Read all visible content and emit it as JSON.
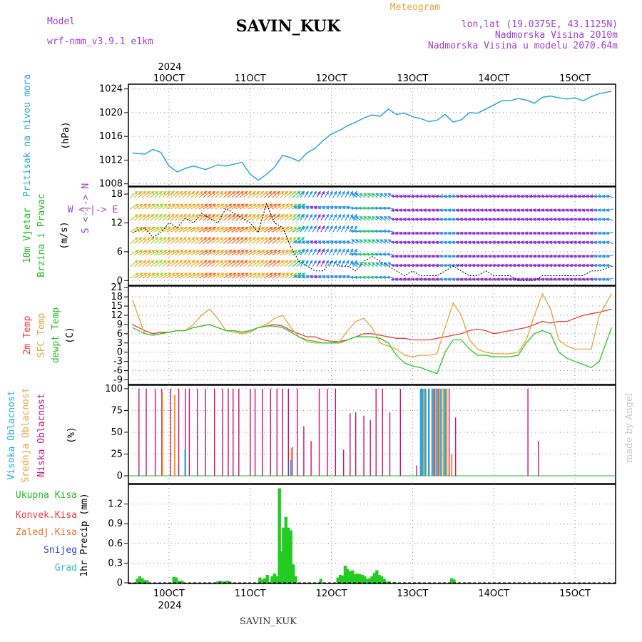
{
  "header": {
    "station": "SAVIN_KUK",
    "title": "Meteogram",
    "model_label": "Model",
    "model_name": "wrf-nmm_v3.9.1 e1km",
    "coords": "lon,lat (19.0375E, 43.1125N)",
    "elevation": "Nadmorska Visina 2010m",
    "model_elevation": "Nadmorska Visina u modelu 2070.64m",
    "credit": "made by Angel",
    "footer_station": "SAVIN_KUK",
    "year_top": "2024",
    "year_bottom": "2024"
  },
  "colors": {
    "pressure": "#29a8e0",
    "temp2m": "#ee3b3b",
    "sfc": "#e8a33c",
    "dew": "#22cc22",
    "high_cloud": "#29a8e0",
    "mid_cloud": "#e8a33c",
    "low_cloud": "#cc1177",
    "precip": "#22cc22",
    "purple": "#a040d0"
  },
  "time_axis": {
    "labels": [
      "10OCT",
      "11OCT",
      "12OCT",
      "13OCT",
      "14OCT",
      "15OCT"
    ],
    "day_positions": [
      10,
      11,
      12,
      13,
      14,
      15
    ],
    "range": [
      9.5,
      15.5
    ]
  },
  "panels": {
    "pressure": {
      "ylabel1": "Pritisak na nivou mora",
      "ylabel2": "(hPa)",
      "yticks": [
        "1024",
        "1020",
        "1016",
        "1012",
        "1008"
      ]
    },
    "wind": {
      "ylabel1": "10m Vjetar",
      "ylabel2": "Brzina i Pravac",
      "ylabel3": "(m/s)",
      "compass": "W <-|-> E",
      "compass2": "S <-|-> N",
      "yticks": [
        "18",
        "12",
        "6",
        "0"
      ]
    },
    "temp": {
      "ylabel1": "2m Temp",
      "ylabel2": "SFC Temp",
      "ylabel3": "dewpt Temp",
      "ylabel4": "(C)",
      "yticks": [
        "21",
        "18",
        "15",
        "12",
        "9",
        "6",
        "3",
        "0",
        "-3",
        "-6",
        "-9"
      ]
    },
    "cloud": {
      "ylabel1": "Visoka Oblacnost",
      "ylabel2": "Srednja Oblacnost",
      "ylabel3": "Niska Oblacnost",
      "ylabel4": "(%)",
      "yticks": [
        "100",
        "75",
        "50",
        "25",
        "0"
      ]
    },
    "precip": {
      "legend": [
        "Ukupna Kisa",
        "Konvek.Kisa",
        "Zaledj.Kisa",
        "Snijeg",
        "Grad"
      ],
      "ylabel": "1hr Precip (mm)",
      "yticks": [
        "1.2",
        "0.9",
        "0.6",
        "0.3",
        "0"
      ]
    }
  },
  "chart_data": [
    {
      "type": "line",
      "name": "pressure",
      "ylabel": "(hPa)",
      "ylim": [
        1008,
        1025
      ],
      "x": [
        9.55,
        9.7,
        9.8,
        9.9,
        10.0,
        10.1,
        10.2,
        10.3,
        10.45,
        10.6,
        10.7,
        10.8,
        10.9,
        11.0,
        11.1,
        11.2,
        11.3,
        11.4,
        11.5,
        11.6,
        11.7,
        11.8,
        11.9,
        12.0,
        12.1,
        12.2,
        12.3,
        12.4,
        12.5,
        12.6,
        12.7,
        12.8,
        12.9,
        13.0,
        13.1,
        13.2,
        13.3,
        13.4,
        13.5,
        13.6,
        13.7,
        13.8,
        13.9,
        14.0,
        14.1,
        14.2,
        14.3,
        14.4,
        14.5,
        14.6,
        14.7,
        14.8,
        14.9,
        15.0,
        15.1,
        15.2,
        15.3,
        15.45
      ],
      "values": [
        1013.2,
        1013.0,
        1013.8,
        1013.3,
        1011.0,
        1010.0,
        1010.6,
        1011.0,
        1010.4,
        1011.2,
        1011.0,
        1011.3,
        1011.6,
        1009.6,
        1008.6,
        1009.6,
        1010.8,
        1012.8,
        1012.4,
        1011.8,
        1013.2,
        1014.0,
        1015.3,
        1016.4,
        1017.0,
        1017.8,
        1018.4,
        1019.1,
        1019.6,
        1019.4,
        1020.6,
        1019.7,
        1019.9,
        1019.3,
        1019.0,
        1018.5,
        1018.7,
        1019.7,
        1018.4,
        1018.8,
        1020.0,
        1019.9,
        1020.6,
        1021.3,
        1022.0,
        1022.0,
        1022.4,
        1022.1,
        1021.6,
        1022.6,
        1022.8,
        1022.5,
        1022.3,
        1022.5,
        1022.0,
        1022.7,
        1023.2,
        1023.6
      ]
    },
    {
      "type": "line",
      "name": "wind_speed",
      "ylabel": "(m/s)",
      "ylim": [
        -1,
        19.5
      ],
      "x": [
        9.55,
        9.7,
        9.8,
        9.9,
        10.0,
        10.1,
        10.2,
        10.3,
        10.4,
        10.5,
        10.6,
        10.7,
        10.8,
        10.9,
        11.0,
        11.1,
        11.2,
        11.3,
        11.4,
        11.5,
        11.6,
        11.7,
        11.8,
        11.9,
        12.0,
        12.1,
        12.2,
        12.3,
        12.4,
        12.5,
        12.6,
        12.7,
        12.8,
        12.9,
        13.0,
        13.1,
        13.2,
        13.3,
        13.4,
        13.5,
        13.6,
        13.7,
        13.8,
        13.9,
        14.0,
        14.1,
        14.2,
        14.3,
        14.4,
        14.5,
        14.6,
        14.7,
        14.8,
        14.9,
        15.0,
        15.1,
        15.2,
        15.3,
        15.45
      ],
      "values": [
        10,
        11,
        9,
        10,
        12,
        11,
        13,
        12,
        14,
        13,
        12,
        15,
        14,
        13,
        12,
        10,
        16,
        12,
        11,
        7,
        4,
        3,
        2,
        2,
        4,
        3,
        3,
        2,
        4,
        5,
        4,
        3,
        2,
        1,
        2,
        1,
        1,
        1,
        2,
        3,
        2,
        1,
        1,
        2,
        1,
        1,
        1,
        0,
        0,
        0,
        1,
        1,
        1,
        1,
        1,
        1,
        2,
        2,
        3
      ]
    },
    {
      "type": "line",
      "name": "temperature",
      "ylabel": "(C)",
      "ylim": [
        -9,
        21
      ],
      "x": [
        9.55,
        9.7,
        9.8,
        9.9,
        10.0,
        10.1,
        10.2,
        10.3,
        10.4,
        10.5,
        10.6,
        10.7,
        10.8,
        10.9,
        11.0,
        11.1,
        11.2,
        11.3,
        11.4,
        11.5,
        11.6,
        11.7,
        11.8,
        11.9,
        12.0,
        12.1,
        12.2,
        12.3,
        12.4,
        12.5,
        12.6,
        12.7,
        12.8,
        12.9,
        13.0,
        13.1,
        13.2,
        13.3,
        13.4,
        13.5,
        13.6,
        13.7,
        13.8,
        13.9,
        14.0,
        14.1,
        14.2,
        14.3,
        14.4,
        14.5,
        14.6,
        14.7,
        14.8,
        14.9,
        15.0,
        15.1,
        15.2,
        15.3,
        15.45
      ],
      "series": [
        {
          "name": "2m Temp",
          "values": [
            9,
            7,
            6,
            6.5,
            6.5,
            7,
            7,
            8,
            8.5,
            9,
            8,
            7,
            7,
            6.5,
            7,
            8,
            8.5,
            9,
            8.5,
            7,
            6,
            5,
            5,
            4,
            3.5,
            3.5,
            4,
            5,
            6,
            6,
            5.5,
            5,
            4.5,
            4.5,
            4,
            4,
            4,
            4.5,
            5,
            5.5,
            6,
            7,
            7.5,
            7,
            6,
            6.5,
            7,
            7.5,
            8,
            9,
            10,
            9.5,
            10,
            10,
            11,
            12,
            12.5,
            13,
            14
          ]
        },
        {
          "name": "SFC Temp",
          "values": [
            17,
            6,
            5.5,
            6,
            6.5,
            7,
            7,
            9,
            12,
            14,
            11,
            7,
            6.5,
            6,
            6.5,
            8,
            9,
            11,
            12,
            8,
            5,
            3.5,
            3,
            3,
            3,
            3.5,
            7,
            10,
            11,
            8,
            3,
            2,
            1,
            -1,
            -1.5,
            -1,
            -1,
            -0.5,
            8,
            16,
            12,
            4,
            1,
            0,
            -0.5,
            -0.5,
            -0.5,
            0,
            4,
            12,
            19,
            14,
            4,
            2,
            1,
            1,
            1,
            12,
            19
          ]
        },
        {
          "name": "dewpt Temp",
          "values": [
            8,
            6,
            5.5,
            6,
            6.5,
            7,
            7,
            8,
            8.5,
            9,
            8,
            7,
            7,
            6.5,
            7,
            8,
            8.5,
            8.5,
            8,
            6.5,
            5,
            4,
            3.5,
            3,
            3,
            3,
            4,
            5,
            5,
            5,
            4.5,
            3,
            -1,
            -3.5,
            -4.5,
            -5,
            -6,
            -7,
            0,
            4,
            4,
            1,
            -1,
            -1,
            -1.5,
            -1.5,
            -1.5,
            -1,
            3,
            6,
            7,
            6,
            0,
            -2,
            -3,
            -4,
            -5,
            -3,
            8
          ]
        }
      ]
    },
    {
      "type": "bar",
      "name": "cloud_cover",
      "ylabel": "(%)",
      "ylim": [
        0,
        100
      ],
      "series": [
        {
          "name": "Niska Oblacnost",
          "x": [
            9.63,
            9.72,
            9.83,
            9.91,
            10.02,
            10.12,
            10.2,
            10.25,
            10.35,
            10.45,
            10.56,
            10.66,
            10.73,
            10.79,
            10.86,
            11.0,
            11.06,
            11.15,
            11.25,
            11.33,
            11.4,
            11.47,
            11.52,
            11.58,
            11.66,
            11.75,
            11.85,
            11.95,
            12.05,
            12.15,
            12.23,
            12.3,
            12.4,
            12.48,
            12.55,
            12.63,
            12.72,
            12.85,
            13.05,
            13.1,
            13.15,
            13.2,
            13.27,
            13.32,
            13.45,
            13.53,
            14.42,
            14.55
          ],
          "values": [
            100,
            100,
            100,
            100,
            100,
            100,
            100,
            100,
            100,
            100,
            100,
            100,
            100,
            100,
            100,
            100,
            100,
            100,
            100,
            100,
            100,
            100,
            33,
            100,
            57,
            40,
            100,
            100,
            100,
            30,
            72,
            73,
            69,
            64,
            100,
            100,
            73,
            100,
            12,
            100,
            100,
            100,
            100,
            100,
            100,
            67,
            100,
            40
          ]
        },
        {
          "name": "Srednja Oblacnost",
          "x": [
            9.92,
            10.07,
            11.51,
            13.14,
            13.2,
            13.24,
            13.29,
            13.33,
            13.38,
            13.42,
            13.48
          ],
          "values": [
            96,
            93,
            32,
            100,
            100,
            100,
            100,
            100,
            100,
            100,
            25
          ]
        },
        {
          "name": "Visoka Oblacnost",
          "x": [
            10.2,
            11.5,
            13.1,
            13.12,
            13.16,
            13.2,
            13.25,
            13.3,
            13.35,
            13.4
          ],
          "values": [
            30,
            18,
            100,
            100,
            100,
            100,
            100,
            100,
            100,
            100
          ]
        }
      ]
    },
    {
      "type": "bar",
      "name": "precipitation",
      "ylabel": "1hr Precip (mm)",
      "ylim": [
        0,
        1.5
      ],
      "series": [
        {
          "name": "Ukupna Kisa",
          "x": [
            9.61,
            9.64,
            9.67,
            9.7,
            9.73,
            10.06,
            10.09,
            10.13,
            10.16,
            10.6,
            10.63,
            10.66,
            10.69,
            10.72,
            10.75,
            11.12,
            11.15,
            11.18,
            11.21,
            11.27,
            11.3,
            11.33,
            11.36,
            11.38,
            11.41,
            11.44,
            11.47,
            11.5,
            11.53,
            11.56,
            11.87,
            12.08,
            12.11,
            12.14,
            12.17,
            12.2,
            12.23,
            12.26,
            12.29,
            12.32,
            12.35,
            12.38,
            12.41,
            12.44,
            12.47,
            12.5,
            12.53,
            12.56,
            12.59,
            12.62,
            12.65,
            12.68,
            12.71,
            12.77,
            13.48,
            13.51
          ],
          "values": [
            0.06,
            0.1,
            0.07,
            0.04,
            0.04,
            0.09,
            0.08,
            0.03,
            0.03,
            0.02,
            0.03,
            0.02,
            0.02,
            0.03,
            0.02,
            0.08,
            0.05,
            0.07,
            0.12,
            0.1,
            0.14,
            0.1,
            1.44,
            0.48,
            0.84,
            1.0,
            0.84,
            0.8,
            0.28,
            0.1,
            0.06,
            0.08,
            0.12,
            0.11,
            0.26,
            0.21,
            0.18,
            0.19,
            0.13,
            0.14,
            0.13,
            0.12,
            0.1,
            0.06,
            0.07,
            0.1,
            0.15,
            0.19,
            0.12,
            0.1,
            0.06,
            0.02,
            0.02,
            0.01,
            0.07,
            0.05
          ]
        }
      ]
    }
  ]
}
